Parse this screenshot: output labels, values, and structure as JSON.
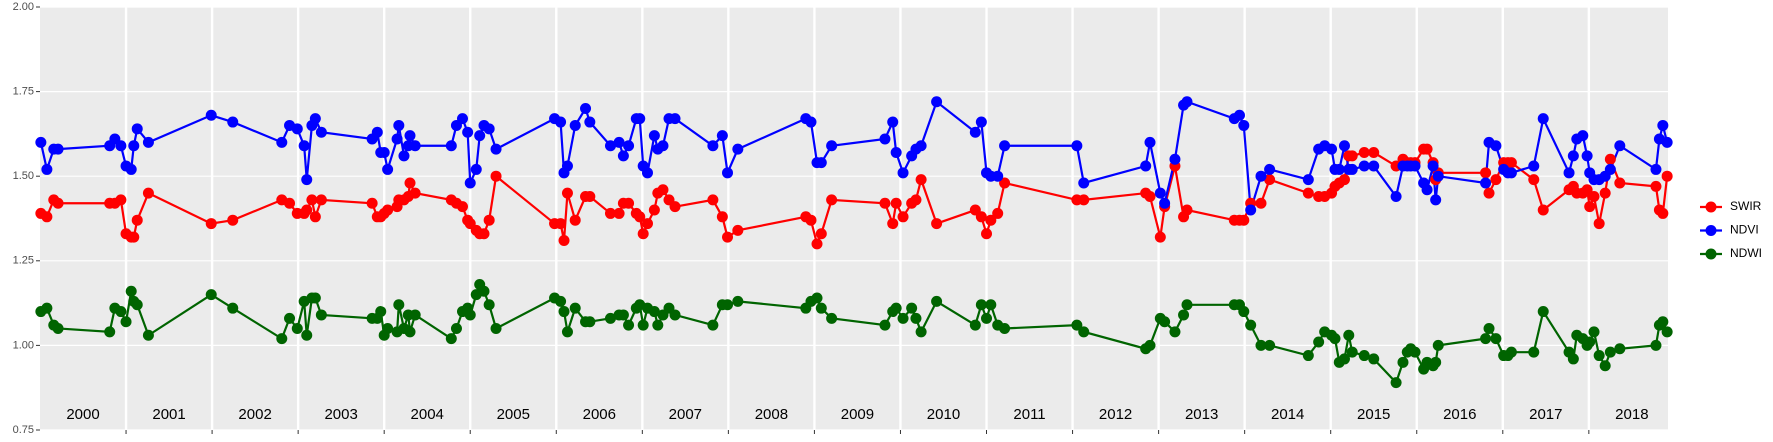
{
  "chart_data": {
    "type": "line",
    "x": [
      2000.01,
      2000.08,
      2000.16,
      2000.21,
      2000.81,
      2000.87,
      2000.94,
      2001.0,
      2001.06,
      2001.09,
      2001.13,
      2001.26,
      2001.99,
      2002.24,
      2002.81,
      2002.9,
      2002.99,
      2003.07,
      2003.1,
      2003.16,
      2003.2,
      2003.27,
      2003.86,
      2003.92,
      2003.96,
      2004.0,
      2004.04,
      2004.15,
      2004.17,
      2004.23,
      2004.28,
      2004.3,
      2004.36,
      2004.78,
      2004.84,
      2004.91,
      2004.97,
      2005.0,
      2005.07,
      2005.11,
      2005.16,
      2005.22,
      2005.3,
      2005.98,
      2006.05,
      2006.09,
      2006.13,
      2006.22,
      2006.34,
      2006.39,
      2006.63,
      2006.73,
      2006.78,
      2006.84,
      2006.93,
      2006.97,
      2007.01,
      2007.06,
      2007.14,
      2007.18,
      2007.24,
      2007.31,
      2007.38,
      2007.82,
      2007.93,
      2007.99,
      2008.11,
      2008.9,
      2008.96,
      2009.03,
      2009.08,
      2009.2,
      2009.82,
      2009.91,
      2009.95,
      2010.03,
      2010.13,
      2010.18,
      2010.24,
      2010.42,
      2010.87,
      2010.94,
      2011.0,
      2011.05,
      2011.13,
      2011.21,
      2012.05,
      2012.13,
      2012.85,
      2012.9,
      2013.02,
      2013.07,
      2013.19,
      2013.29,
      2013.33,
      2013.88,
      2013.94,
      2013.99,
      2014.07,
      2014.19,
      2014.29,
      2014.74,
      2014.86,
      2014.93,
      2015.01,
      2015.05,
      2015.1,
      2015.16,
      2015.21,
      2015.25,
      2015.39,
      2015.5,
      2015.76,
      2015.84,
      2015.89,
      2015.93,
      2015.98,
      2016.08,
      2016.12,
      2016.19,
      2016.22,
      2016.25,
      2016.8,
      2016.84,
      2016.92,
      2017.01,
      2017.06,
      2017.1,
      2017.36,
      2017.47,
      2017.77,
      2017.82,
      2017.86,
      2017.93,
      2017.98,
      2018.01,
      2018.06,
      2018.12,
      2018.19,
      2018.25,
      2018.36,
      2018.78,
      2018.82,
      2018.86,
      2018.91
    ],
    "series": [
      {
        "name": "SWIR",
        "color": "#ff0000",
        "values": [
          1.39,
          1.38,
          1.43,
          1.42,
          1.42,
          1.42,
          1.43,
          1.33,
          1.32,
          1.32,
          1.37,
          1.45,
          1.36,
          1.37,
          1.43,
          1.42,
          1.39,
          1.39,
          1.4,
          1.43,
          1.38,
          1.43,
          1.42,
          1.38,
          1.38,
          1.39,
          1.4,
          1.41,
          1.43,
          1.43,
          1.44,
          1.48,
          1.45,
          1.43,
          1.42,
          1.41,
          1.37,
          1.36,
          1.34,
          1.33,
          1.33,
          1.37,
          1.5,
          1.36,
          1.36,
          1.31,
          1.45,
          1.37,
          1.44,
          1.44,
          1.39,
          1.39,
          1.42,
          1.42,
          1.39,
          1.38,
          1.33,
          1.36,
          1.4,
          1.45,
          1.46,
          1.43,
          1.41,
          1.43,
          1.38,
          1.32,
          1.34,
          1.38,
          1.37,
          1.3,
          1.33,
          1.43,
          1.42,
          1.36,
          1.42,
          1.38,
          1.42,
          1.43,
          1.49,
          1.36,
          1.4,
          1.38,
          1.33,
          1.37,
          1.39,
          1.48,
          1.43,
          1.43,
          1.45,
          1.44,
          1.32,
          1.41,
          1.53,
          1.38,
          1.4,
          1.37,
          1.37,
          1.37,
          1.42,
          1.42,
          1.49,
          1.45,
          1.44,
          1.44,
          1.45,
          1.47,
          1.48,
          1.49,
          1.56,
          1.56,
          1.57,
          1.57,
          1.53,
          1.55,
          1.54,
          1.54,
          1.54,
          1.58,
          1.58,
          1.54,
          1.49,
          1.51,
          1.51,
          1.45,
          1.49,
          1.54,
          1.54,
          1.54,
          1.49,
          1.4,
          1.46,
          1.47,
          1.45,
          1.45,
          1.46,
          1.41,
          1.44,
          1.36,
          1.45,
          1.55,
          1.48,
          1.47,
          1.4,
          1.39,
          1.5
        ]
      },
      {
        "name": "NDVI",
        "color": "#0000ff",
        "values": [
          1.6,
          1.52,
          1.58,
          1.58,
          1.59,
          1.61,
          1.59,
          1.53,
          1.52,
          1.59,
          1.64,
          1.6,
          1.68,
          1.66,
          1.6,
          1.65,
          1.64,
          1.59,
          1.49,
          1.65,
          1.67,
          1.63,
          1.61,
          1.63,
          1.57,
          1.57,
          1.52,
          1.61,
          1.65,
          1.56,
          1.59,
          1.62,
          1.59,
          1.59,
          1.65,
          1.67,
          1.63,
          1.48,
          1.52,
          1.62,
          1.65,
          1.64,
          1.58,
          1.67,
          1.66,
          1.51,
          1.53,
          1.65,
          1.7,
          1.66,
          1.59,
          1.6,
          1.56,
          1.59,
          1.67,
          1.67,
          1.53,
          1.51,
          1.62,
          1.58,
          1.59,
          1.67,
          1.67,
          1.59,
          1.62,
          1.51,
          1.58,
          1.67,
          1.66,
          1.54,
          1.54,
          1.59,
          1.61,
          1.66,
          1.57,
          1.51,
          1.56,
          1.58,
          1.59,
          1.72,
          1.63,
          1.66,
          1.51,
          1.5,
          1.5,
          1.59,
          1.59,
          1.48,
          1.53,
          1.6,
          1.45,
          1.42,
          1.55,
          1.71,
          1.72,
          1.67,
          1.68,
          1.65,
          1.4,
          1.5,
          1.52,
          1.49,
          1.58,
          1.59,
          1.58,
          1.52,
          1.52,
          1.59,
          1.52,
          1.52,
          1.53,
          1.53,
          1.44,
          1.53,
          1.53,
          1.53,
          1.53,
          1.48,
          1.46,
          1.53,
          1.43,
          1.5,
          1.48,
          1.6,
          1.59,
          1.52,
          1.51,
          1.51,
          1.53,
          1.67,
          1.51,
          1.56,
          1.61,
          1.62,
          1.56,
          1.51,
          1.49,
          1.49,
          1.5,
          1.52,
          1.59,
          1.52,
          1.61,
          1.65,
          1.6
        ]
      },
      {
        "name": "NDWI",
        "color": "#006400",
        "values": [
          1.1,
          1.11,
          1.06,
          1.05,
          1.04,
          1.11,
          1.1,
          1.07,
          1.16,
          1.13,
          1.12,
          1.03,
          1.15,
          1.11,
          1.02,
          1.08,
          1.05,
          1.13,
          1.03,
          1.14,
          1.14,
          1.09,
          1.08,
          1.08,
          1.1,
          1.03,
          1.05,
          1.04,
          1.12,
          1.05,
          1.09,
          1.04,
          1.09,
          1.02,
          1.05,
          1.1,
          1.11,
          1.09,
          1.15,
          1.18,
          1.16,
          1.12,
          1.05,
          1.14,
          1.13,
          1.1,
          1.04,
          1.11,
          1.07,
          1.07,
          1.08,
          1.09,
          1.09,
          1.06,
          1.11,
          1.12,
          1.06,
          1.11,
          1.1,
          1.06,
          1.09,
          1.11,
          1.09,
          1.06,
          1.12,
          1.12,
          1.13,
          1.11,
          1.13,
          1.14,
          1.11,
          1.08,
          1.06,
          1.1,
          1.11,
          1.08,
          1.11,
          1.08,
          1.04,
          1.13,
          1.06,
          1.12,
          1.08,
          1.12,
          1.06,
          1.05,
          1.06,
          1.04,
          0.99,
          1.0,
          1.08,
          1.07,
          1.04,
          1.09,
          1.12,
          1.12,
          1.12,
          1.1,
          1.06,
          1.0,
          1.0,
          0.97,
          1.01,
          1.04,
          1.03,
          1.02,
          0.95,
          0.96,
          1.03,
          0.98,
          0.97,
          0.96,
          0.89,
          0.95,
          0.98,
          0.99,
          0.98,
          0.93,
          0.95,
          0.94,
          0.95,
          1.0,
          1.02,
          1.05,
          1.02,
          0.97,
          0.97,
          0.98,
          0.98,
          1.1,
          0.98,
          0.96,
          1.03,
          1.02,
          1.0,
          1.01,
          1.04,
          0.97,
          0.94,
          0.98,
          0.99,
          1.0,
          1.06,
          1.07,
          1.04
        ]
      }
    ],
    "year_labels": [
      2000,
      2001,
      2002,
      2003,
      2004,
      2005,
      2006,
      2007,
      2008,
      2009,
      2010,
      2011,
      2012,
      2013,
      2014,
      2015,
      2016,
      2017,
      2018
    ],
    "xlim": [
      2000,
      2018.92
    ],
    "xticks": [
      2001,
      2002,
      2003,
      2004,
      2005,
      2006,
      2007,
      2008,
      2009,
      2010,
      2011,
      2012,
      2013,
      2014,
      2015,
      2016,
      2017,
      2018
    ],
    "ylim": [
      0.75,
      2.0
    ],
    "yticks": [
      0.75,
      {
        "value": 1,
        "label": "1.00"
      },
      1.25,
      {
        "value": 1.5,
        "label": "1.50"
      },
      1.75,
      {
        "value": 2,
        "label": "2.00"
      }
    ],
    "grid": true,
    "legend_position": "right"
  }
}
